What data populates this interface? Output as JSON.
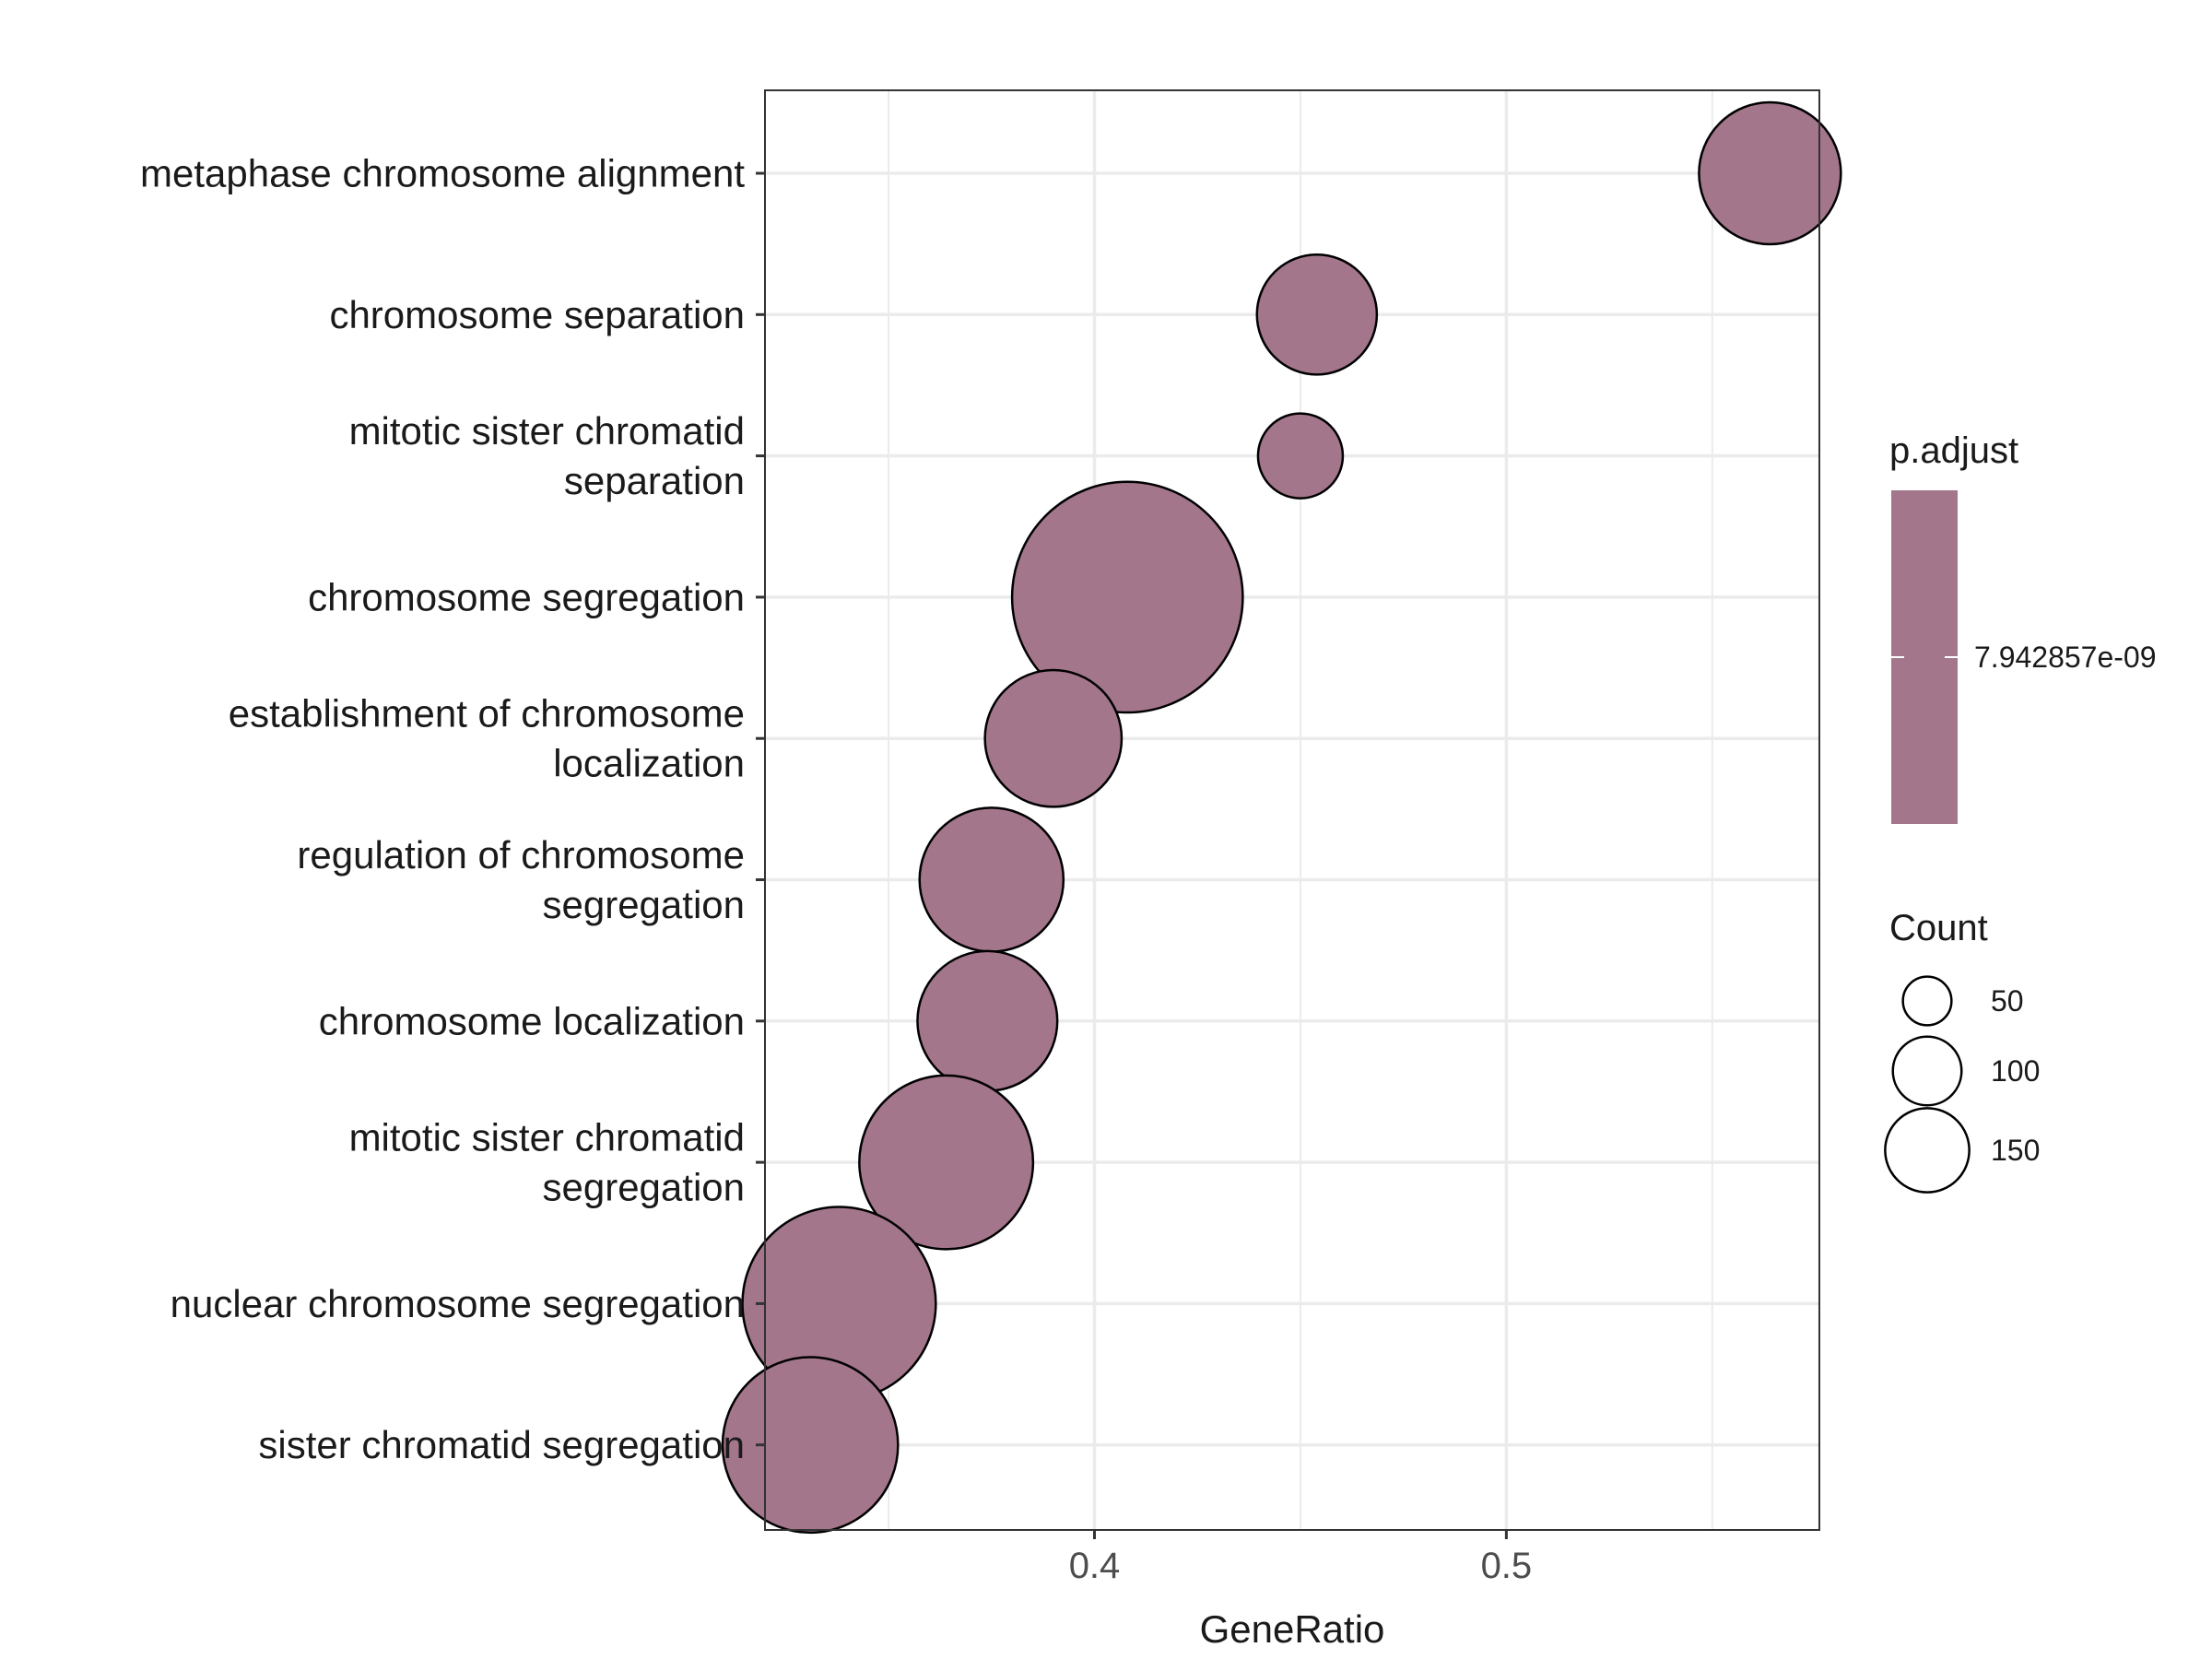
{
  "chart_data": {
    "type": "scatter",
    "xlabel": "GeneRatio",
    "ylabel": "",
    "xlim": [
      0.32,
      0.576
    ],
    "xticks": [
      0.4,
      0.5
    ],
    "xtick_labels": [
      "0.4",
      "0.5"
    ],
    "grid": true,
    "legend_position": "right",
    "point_color": "#a3768c",
    "categories": [
      {
        "label": [
          "metaphase chromosome alignment"
        ],
        "gene_ratio": 0.564,
        "count": 70
      },
      {
        "label": [
          "chromosome separation"
        ],
        "gene_ratio": 0.454,
        "count": 50
      },
      {
        "label": [
          "mitotic sister chromatid",
          "separation"
        ],
        "gene_ratio": 0.45,
        "count": 25
      },
      {
        "label": [
          "chromosome segregation"
        ],
        "gene_ratio": 0.408,
        "count": 185
      },
      {
        "label": [
          "establishment of chromosome",
          "localization"
        ],
        "gene_ratio": 0.39,
        "count": 65
      },
      {
        "label": [
          "regulation of chromosome",
          "segregation"
        ],
        "gene_ratio": 0.375,
        "count": 72
      },
      {
        "label": [
          "chromosome localization"
        ],
        "gene_ratio": 0.374,
        "count": 68
      },
      {
        "label": [
          "mitotic sister chromatid",
          "segregation"
        ],
        "gene_ratio": 0.364,
        "count": 105
      },
      {
        "label": [
          "nuclear chromosome segregation"
        ],
        "gene_ratio": 0.338,
        "count": 130
      },
      {
        "label": [
          "sister chromatid segregation"
        ],
        "gene_ratio": 0.331,
        "count": 107
      }
    ],
    "legend_color": {
      "title": "p.adjust",
      "label": "7.942857e-09",
      "color": "#a3768c"
    },
    "legend_size": {
      "title": "Count",
      "entries": [
        {
          "label": "50",
          "count": 50
        },
        {
          "label": "100",
          "count": 100
        },
        {
          "label": "150",
          "count": 150
        }
      ]
    }
  }
}
